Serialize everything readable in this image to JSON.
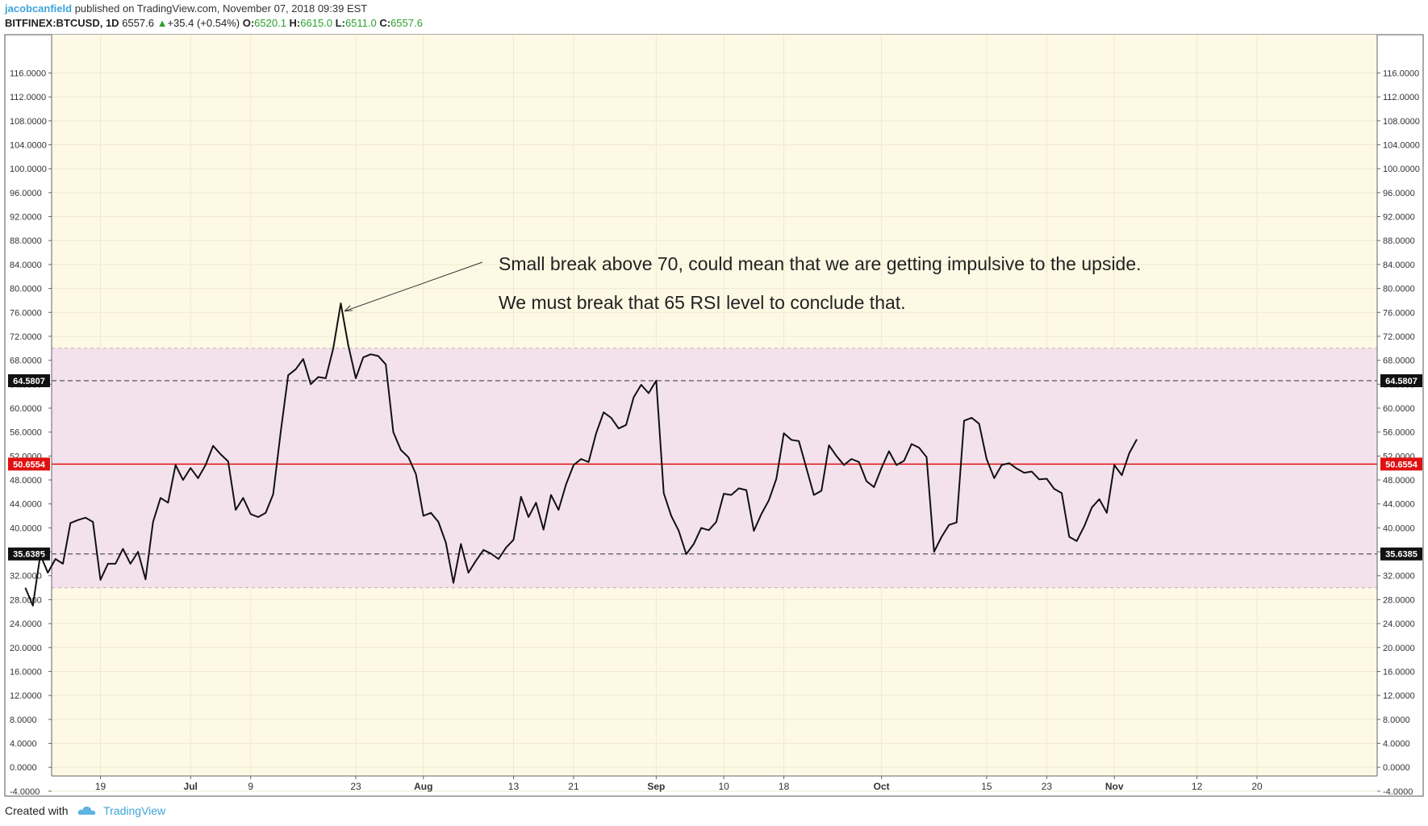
{
  "header": {
    "author": "jacobcanfield",
    "published_text": "published on TradingView.com, November 07, 2018 09:39 EST",
    "symbol": "BITFINEX:BTCUSD, 1D",
    "price": "6557.6",
    "change_arrow": "▲",
    "change": "+35.4 (+0.54%)",
    "open_label": "O:",
    "open": "6520.1",
    "high_label": "H:",
    "high": "6615.0",
    "low_label": "L:",
    "low": "6511.0",
    "close_label": "C:",
    "close": "6557.6"
  },
  "footer": {
    "created_with": "Created with",
    "brand": "TradingView",
    "logo_icon": "tradingview-cloud-icon"
  },
  "colors": {
    "background": "#fdf9e4",
    "band_fill": "#f3e2ec",
    "rsi_line": "#111111",
    "midline": "#e01010",
    "brand": "#3da4d9"
  },
  "chart_data": {
    "type": "line",
    "indicator": "RSI",
    "ylim": [
      -6,
      120
    ],
    "y_ticks": [
      "116.0000",
      "112.0000",
      "108.0000",
      "104.0000",
      "100.0000",
      "96.0000",
      "92.0000",
      "88.0000",
      "84.0000",
      "80.0000",
      "76.0000",
      "72.0000",
      "68.0000",
      "64.0000",
      "60.0000",
      "56.0000",
      "52.0000",
      "48.0000",
      "44.0000",
      "40.0000",
      "36.0000",
      "32.0000",
      "28.0000",
      "24.0000",
      "20.0000",
      "16.0000",
      "12.0000",
      "8.0000",
      "4.0000",
      "0.0000",
      "-4.0000"
    ],
    "x_ticks": [
      {
        "label": "19",
        "day": 10,
        "bold": false
      },
      {
        "label": "Jul",
        "day": 22,
        "bold": true
      },
      {
        "label": "9",
        "day": 30,
        "bold": false
      },
      {
        "label": "23",
        "day": 44,
        "bold": false
      },
      {
        "label": "Aug",
        "day": 53,
        "bold": true
      },
      {
        "label": "13",
        "day": 65,
        "bold": false
      },
      {
        "label": "21",
        "day": 73,
        "bold": false
      },
      {
        "label": "Sep",
        "day": 84,
        "bold": true
      },
      {
        "label": "10",
        "day": 93,
        "bold": false
      },
      {
        "label": "18",
        "day": 101,
        "bold": false
      },
      {
        "label": "Oct",
        "day": 114,
        "bold": true
      },
      {
        "label": "15",
        "day": 128,
        "bold": false
      },
      {
        "label": "23",
        "day": 136,
        "bold": false
      },
      {
        "label": "Nov",
        "day": 145,
        "bold": true
      },
      {
        "label": "12",
        "day": 156,
        "bold": false
      },
      {
        "label": "20",
        "day": 164,
        "bold": false
      }
    ],
    "x_range": [
      3.5,
      180
    ],
    "band": [
      30,
      70
    ],
    "levels": [
      {
        "value": 64.5807,
        "label": "64.5807",
        "style": "dashed",
        "badge": "dark"
      },
      {
        "value": 50.6554,
        "label": "50.6554",
        "style": "solid",
        "badge": "red"
      },
      {
        "value": 35.6385,
        "label": "35.6385",
        "style": "dashed",
        "badge": "dark"
      }
    ],
    "series": [
      {
        "values": [
          30,
          27,
          35.5,
          32.5,
          34.8,
          34,
          40.8,
          41.3,
          41.7,
          41,
          31.3,
          34,
          34,
          36.5,
          34,
          36,
          31.4,
          41,
          45,
          44.2,
          50.5,
          48,
          50,
          48.3,
          50.5,
          53.7,
          52.3,
          51.1,
          43,
          45,
          42.3,
          41.8,
          42.5,
          45.6,
          56,
          65.5,
          66.5,
          68.2,
          64,
          65.2,
          65,
          70,
          77.5,
          70.5,
          65,
          68.5,
          69,
          68.7,
          67.3,
          56,
          53,
          51.8,
          49,
          42,
          42.5,
          41,
          37.5,
          30.8,
          37.3,
          32.5,
          34.5,
          36.3,
          35.7,
          34.8,
          36.7,
          38,
          45.2,
          41.8,
          44.2,
          39.7,
          45.5,
          43,
          47.3,
          50.5,
          51.5,
          51,
          55.8,
          59.3,
          58.4,
          56.6,
          57.2,
          61.8,
          63.9,
          62.5,
          64.6,
          45.8,
          42,
          39.5,
          35.6,
          37.3,
          40,
          39.6,
          41,
          45.7,
          45.5,
          46.6,
          46.3,
          39.5,
          42.3,
          44.6,
          48.2,
          55.8,
          54.7,
          54.5,
          50,
          45.5,
          46.2,
          53.8,
          52,
          50.5,
          51.5,
          51,
          47.8,
          46.8,
          50,
          52.8,
          50.5,
          51.2,
          54,
          53.4,
          51.8,
          36,
          38.5,
          40.5,
          40.9,
          57.9,
          58.4,
          57.4,
          51.5,
          48.3,
          50.5,
          50.8,
          49.9,
          49.2,
          49.4,
          48.1,
          48.2,
          46.5,
          45.8,
          38.5,
          37.8,
          40.3,
          43.4,
          44.8,
          42.5,
          50.5,
          48.8,
          52.5,
          54.8
        ]
      }
    ],
    "annotation": {
      "line1": "Small break above 70, could mean that we are getting impulsive to the upside.",
      "line2": "We must break that 65 RSI level to conclude that.",
      "arrow_to_day": 42.5,
      "arrow_to_value": 76.2
    }
  }
}
